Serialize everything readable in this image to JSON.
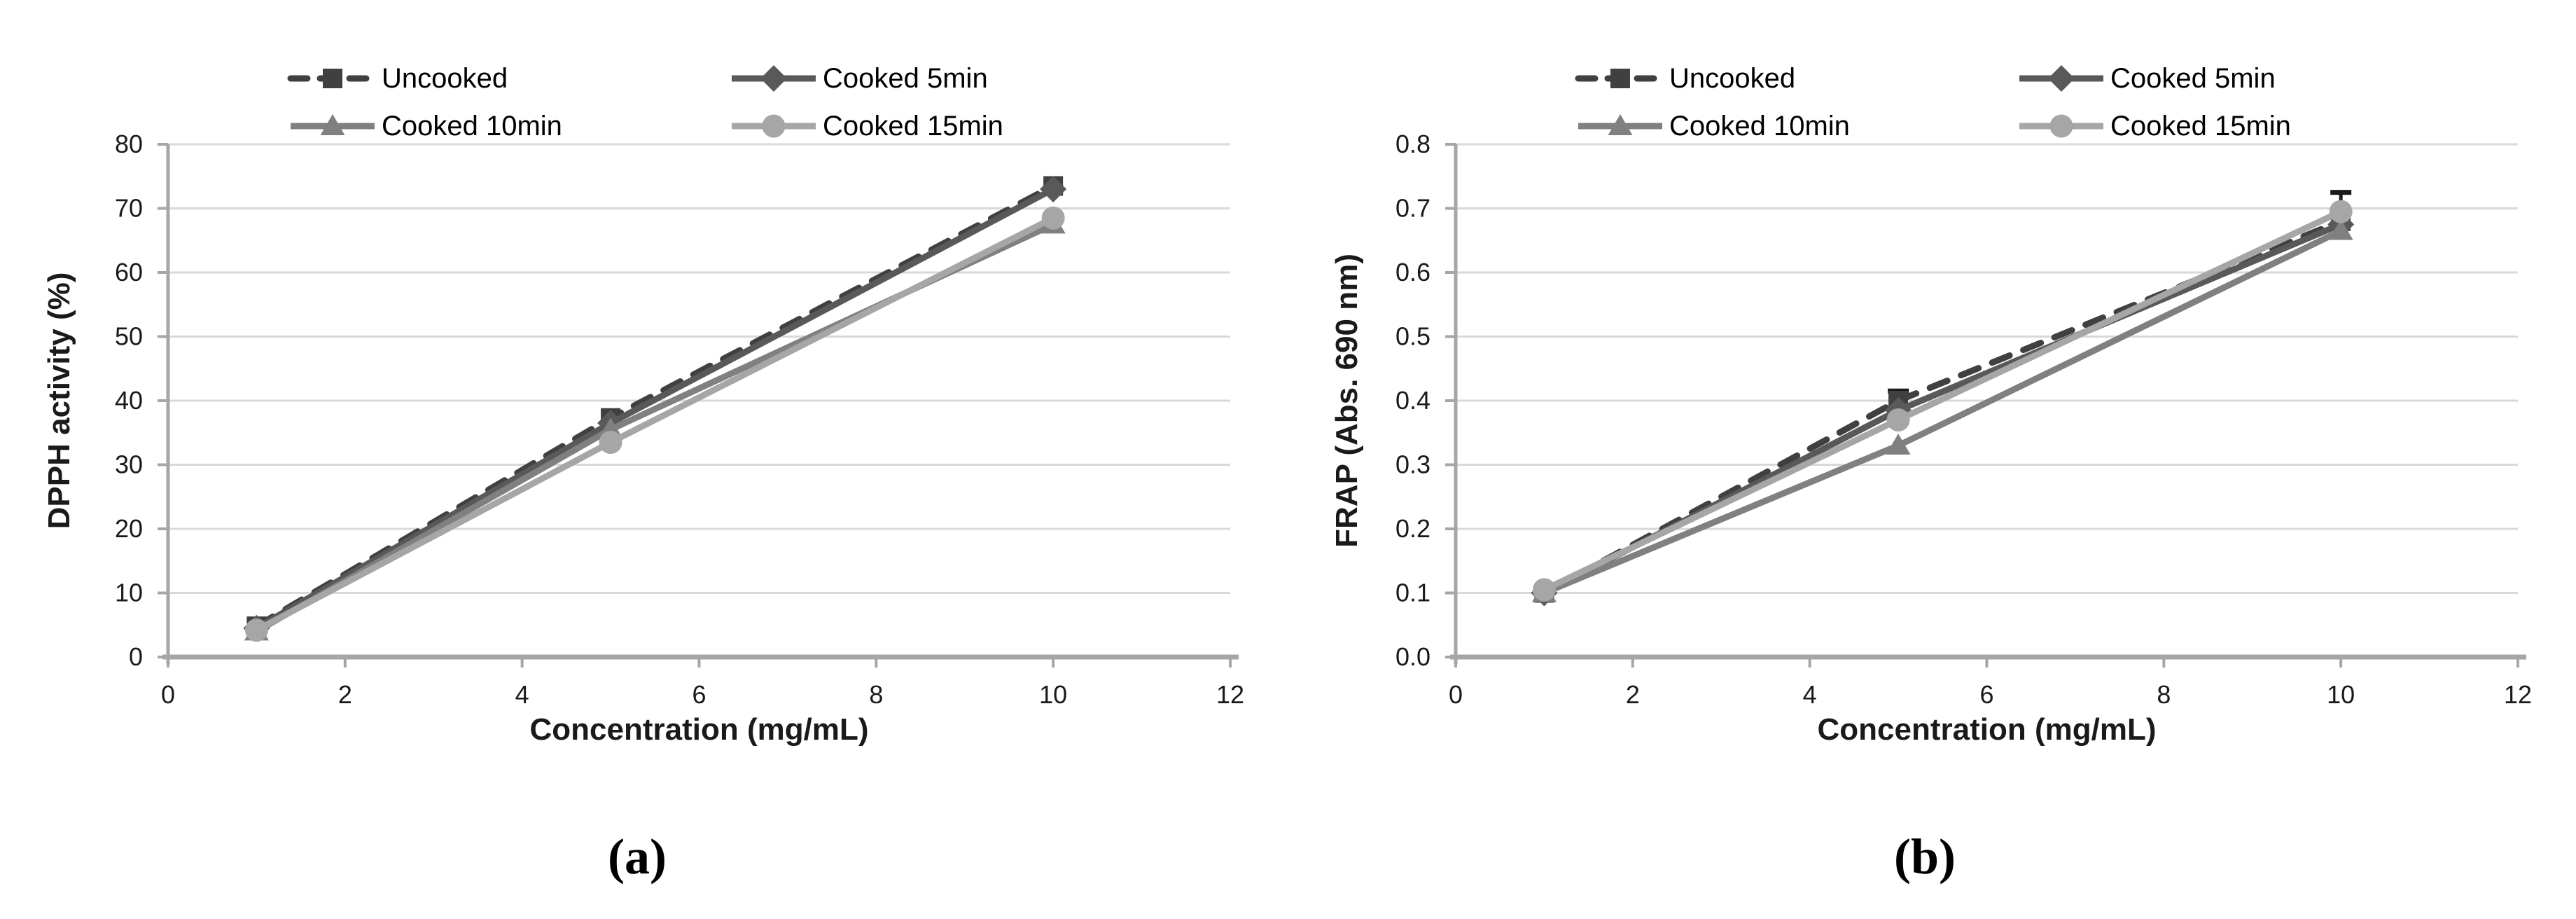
{
  "page": {
    "background": "#ffffff"
  },
  "figure": {
    "panels": [
      {
        "caption": "(a)",
        "chart_index": 0
      },
      {
        "caption": "(b)",
        "chart_index": 1
      }
    ]
  },
  "chart_data": [
    {
      "type": "line",
      "title": "",
      "xlabel": "Concentration (mg/mL)",
      "ylabel": "DPPH activity (%)",
      "x": [
        1,
        5,
        10
      ],
      "xlim": [
        0,
        12
      ],
      "xticks": [
        0,
        2,
        4,
        6,
        8,
        10,
        12
      ],
      "xtick_labels": [
        "0",
        "2",
        "4",
        "6",
        "8",
        "10",
        "12"
      ],
      "ylim": [
        0,
        80
      ],
      "yticks": [
        0,
        10,
        20,
        30,
        40,
        50,
        60,
        70,
        80
      ],
      "ytick_labels": [
        "0",
        "10",
        "20",
        "30",
        "40",
        "50",
        "60",
        "70",
        "80"
      ],
      "grid": "horizontal",
      "legend_position": "top",
      "axis_color": "#a6a6a6",
      "grid_color": "#d9d9d9",
      "text_color": "#1a1a1a",
      "error_bar_color": "#1a1a1a",
      "series": [
        {
          "name": "Uncooked",
          "marker": "square",
          "line_style": "dashed",
          "color": "#404040",
          "values": [
            4.8,
            37.3,
            73.5
          ],
          "error_up": [
            0,
            0,
            0
          ]
        },
        {
          "name": "Cooked 5min",
          "marker": "diamond",
          "line_style": "solid",
          "color": "#595959",
          "values": [
            4.5,
            36.5,
            73.0
          ],
          "error_up": [
            0,
            0,
            0
          ]
        },
        {
          "name": "Cooked 10min",
          "marker": "triangle",
          "line_style": "solid",
          "color": "#808080",
          "values": [
            4.0,
            35.5,
            67.5
          ],
          "error_up": [
            0,
            0,
            0
          ]
        },
        {
          "name": "Cooked 15min",
          "marker": "circle",
          "line_style": "solid",
          "color": "#a6a6a6",
          "values": [
            4.2,
            33.5,
            68.5
          ],
          "error_up": [
            0,
            0,
            0
          ]
        }
      ]
    },
    {
      "type": "line",
      "title": "",
      "xlabel": "Concentration (mg/mL)",
      "ylabel": "FRAP (Abs. 690 nm)",
      "x": [
        1,
        5,
        10
      ],
      "xlim": [
        0,
        12
      ],
      "xticks": [
        0,
        2,
        4,
        6,
        8,
        10,
        12
      ],
      "xtick_labels": [
        "0",
        "2",
        "4",
        "6",
        "8",
        "10",
        "12"
      ],
      "ylim": [
        0,
        0.8
      ],
      "yticks": [
        0,
        0.1,
        0.2,
        0.3,
        0.4,
        0.5,
        0.6,
        0.7,
        0.8
      ],
      "ytick_labels": [
        "0.0",
        "0.1",
        "0.2",
        "0.3",
        "0.4",
        "0.5",
        "0.6",
        "0.7",
        "0.8"
      ],
      "grid": "horizontal",
      "legend_position": "top",
      "axis_color": "#a6a6a6",
      "grid_color": "#d9d9d9",
      "text_color": "#1a1a1a",
      "error_bar_color": "#1a1a1a",
      "series": [
        {
          "name": "Uncooked",
          "marker": "square",
          "line_style": "dashed",
          "color": "#404040",
          "values": [
            0.1,
            0.4,
            0.68
          ],
          "error_up": [
            0,
            0.015,
            0
          ]
        },
        {
          "name": "Cooked 5min",
          "marker": "diamond",
          "line_style": "solid",
          "color": "#595959",
          "values": [
            0.1,
            0.385,
            0.675
          ],
          "error_up": [
            0,
            0,
            0
          ]
        },
        {
          "name": "Cooked 10min",
          "marker": "triangle",
          "line_style": "solid",
          "color": "#808080",
          "values": [
            0.1,
            0.33,
            0.665
          ],
          "error_up": [
            0,
            0,
            0
          ]
        },
        {
          "name": "Cooked 15min",
          "marker": "circle",
          "line_style": "solid",
          "color": "#a6a6a6",
          "values": [
            0.105,
            0.37,
            0.695
          ],
          "error_up": [
            0,
            0,
            0.03
          ]
        }
      ]
    }
  ]
}
